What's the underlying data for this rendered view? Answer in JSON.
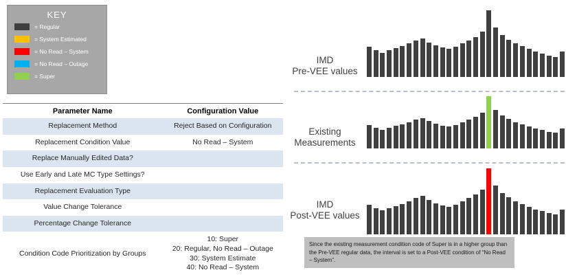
{
  "key": {
    "title": "KEY",
    "items": [
      {
        "label": "= Regular",
        "color": "#3f3f3f",
        "icon": "regular-color-swatch"
      },
      {
        "label": "= System Estimated",
        "color": "#ffc000",
        "icon": "system-estimated-color-swatch"
      },
      {
        "label": "= No Read – System",
        "color": "#ff0000",
        "icon": "no-read-system-color-swatch"
      },
      {
        "label": "= No Read – Outage",
        "color": "#00b0f0",
        "icon": "no-read-outage-color-swatch"
      },
      {
        "label": "= Super",
        "color": "#92d050",
        "icon": "super-color-swatch"
      }
    ]
  },
  "table": {
    "headers": [
      "Parameter Name",
      "Configuration Value"
    ],
    "rows": [
      {
        "name": "Replacement Method",
        "value": "Reject Based on Configuration"
      },
      {
        "name": "Replacement Condition Value",
        "value": "No Read – System"
      },
      {
        "name": "Replace Manually Edited Data?",
        "value": ""
      },
      {
        "name": "Use Early and Late MC Type Settings?",
        "value": ""
      },
      {
        "name": "Replacement Evaluation Type",
        "value": ""
      },
      {
        "name": "Value Change Tolerance",
        "value": ""
      },
      {
        "name": "Percentage Change Tolerance",
        "value": ""
      },
      {
        "name": "Condition Code Prioritization by Groups",
        "value": "10: Super\n20: Regular, No Read – Outage\n30: System Estimate\n40: No Read – System"
      }
    ]
  },
  "chart_data": [
    {
      "type": "bar",
      "title": "IMD\nPre-VEE values",
      "values": [
        45,
        40,
        36,
        40,
        43,
        46,
        50,
        55,
        58,
        52,
        47,
        44,
        42,
        45,
        50,
        55,
        60,
        68,
        100,
        74,
        63,
        56,
        50,
        46,
        42,
        38,
        35,
        32,
        30,
        38
      ],
      "bar_color": "#3f3f3f",
      "highlight_index": 18,
      "highlight_color": "#3f3f3f",
      "highlight_name": "peak-bar",
      "xlabel": "",
      "ylabel": "",
      "ylim": [
        0,
        100
      ],
      "grid": false,
      "legend": false
    },
    {
      "type": "bar",
      "title": "Existing\nMeasurements",
      "values": [
        45,
        40,
        36,
        40,
        43,
        46,
        50,
        55,
        58,
        52,
        47,
        44,
        42,
        45,
        50,
        55,
        60,
        68,
        100,
        74,
        63,
        56,
        50,
        46,
        42,
        38,
        35,
        32,
        30,
        38
      ],
      "bar_color": "#3f3f3f",
      "highlight_index": 18,
      "highlight_color": "#92d050",
      "highlight_name": "super-highlight-bar",
      "xlabel": "",
      "ylabel": "",
      "ylim": [
        0,
        100
      ],
      "grid": false,
      "legend": false
    },
    {
      "type": "bar",
      "title": "IMD\nPost-VEE values",
      "values": [
        45,
        40,
        36,
        40,
        43,
        46,
        50,
        55,
        58,
        52,
        47,
        44,
        42,
        45,
        50,
        55,
        60,
        68,
        100,
        74,
        63,
        56,
        50,
        46,
        42,
        38,
        35,
        32,
        30,
        38
      ],
      "bar_color": "#3f3f3f",
      "highlight_index": 18,
      "highlight_color": "#ff0000",
      "highlight_name": "no-read-system-highlight-bar",
      "xlabel": "",
      "ylabel": "",
      "ylim": [
        0,
        100
      ],
      "grid": false,
      "legend": false
    }
  ],
  "callout": {
    "text": "Since the existing measurement condition code of Super is in a higher group than the Pre-VEE regular data, the interval is set to a Post-VEE condition of “No Read – System”."
  }
}
